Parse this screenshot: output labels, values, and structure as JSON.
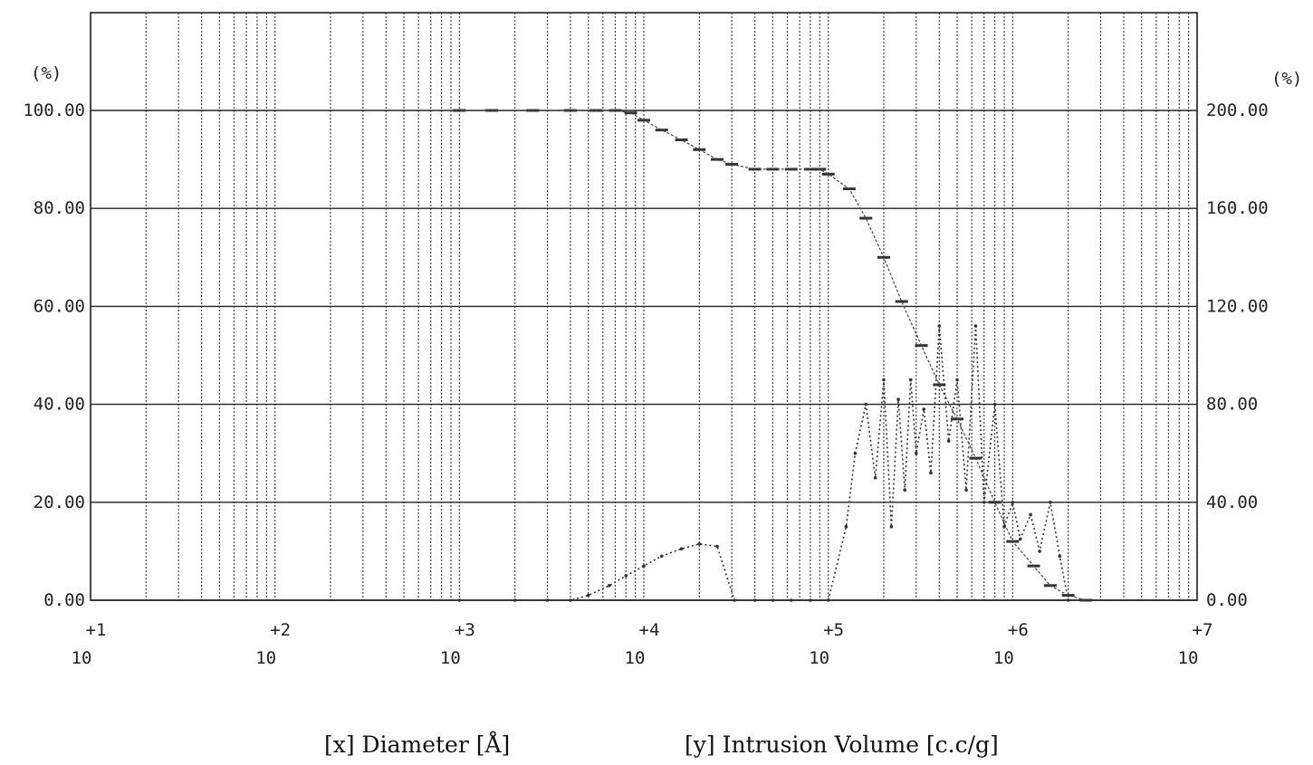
{
  "chart_data": {
    "type": "line",
    "title": "",
    "xlabel": "[x] Diameter [Å]",
    "ylabel": "[y]  Intrusion Volume [c.c/g]",
    "x_scale": "log",
    "xlim": [
      10,
      10000000
    ],
    "x_ticks": [
      {
        "exp": "+1",
        "base": "10"
      },
      {
        "exp": "+2",
        "base": "10"
      },
      {
        "exp": "+3",
        "base": "10"
      },
      {
        "exp": "+4",
        "base": "10"
      },
      {
        "exp": "+5",
        "base": "10"
      },
      {
        "exp": "+6",
        "base": "10"
      },
      {
        "exp": "+7",
        "base": "10"
      }
    ],
    "y_left": {
      "unit": "(%)",
      "ylim": [
        0,
        100
      ],
      "ticks": [
        "0.00",
        "20.00",
        "40.00",
        "60.00",
        "80.00",
        "100.00"
      ]
    },
    "y_right": {
      "unit": "(%)",
      "ylim": [
        0,
        200
      ],
      "ticks": [
        "0.00",
        "40.00",
        "80.00",
        "120.00",
        "160.00",
        "200.00"
      ]
    },
    "grid": true,
    "series": [
      {
        "axis": "left",
        "style": "dashed-step",
        "x": [
          1000,
          1500,
          2500,
          4000,
          5500,
          7000,
          8500,
          10000,
          12500,
          16000,
          20000,
          25000,
          30000,
          40000,
          50000,
          63000,
          80000,
          90000,
          100000,
          130000,
          160000,
          200000,
          250000,
          320000,
          400000,
          500000,
          630000,
          800000,
          1000000,
          1300000,
          1600000,
          2000000,
          2500000
        ],
        "y": [
          100,
          100,
          100,
          100,
          100,
          100,
          99.5,
          98,
          96,
          94,
          92,
          90,
          89,
          88,
          88,
          88,
          88,
          88,
          87,
          84,
          78,
          70,
          61,
          52,
          44,
          37,
          29,
          20,
          12,
          7,
          3,
          1,
          0
        ]
      },
      {
        "axis": "right",
        "style": "dotted",
        "x": [
          1000,
          2000,
          3000,
          4000,
          5000,
          6500,
          8000,
          10000,
          12500,
          16000,
          20000,
          25000,
          31000,
          40000,
          50000,
          63000,
          80000,
          100000,
          125000,
          140000,
          160000,
          180000,
          200000,
          220000,
          240000,
          260000,
          280000,
          300000,
          330000,
          360000,
          400000,
          450000,
          500000,
          560000,
          630000,
          700000,
          800000,
          900000,
          1000000,
          1100000,
          1250000,
          1400000,
          1600000,
          1800000,
          2000000
        ],
        "y": [
          0,
          0,
          0,
          0,
          2,
          6,
          10,
          14,
          18,
          21,
          23,
          22,
          0,
          0,
          0,
          0,
          0,
          0,
          30,
          60,
          80,
          50,
          90,
          30,
          82,
          45,
          90,
          60,
          78,
          52,
          112,
          65,
          90,
          45,
          112,
          40,
          80,
          30,
          40,
          25,
          35,
          20,
          40,
          18,
          0
        ]
      }
    ]
  },
  "caption": {
    "x_part": "[x] Diameter [Å]",
    "y_part": "[y]  Intrusion Volume [c.c/g]"
  }
}
